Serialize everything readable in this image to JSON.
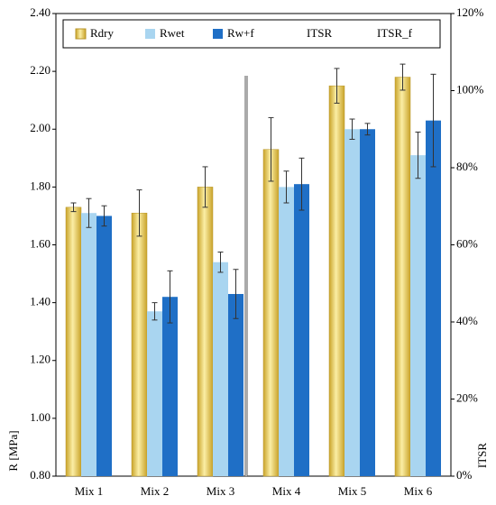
{
  "chart_data": {
    "type": "bar",
    "categories": [
      "Mix 1",
      "Mix 2",
      "Mix 3",
      "Mix 4",
      "Mix 5",
      "Mix 6"
    ],
    "series": [
      {
        "name": "Rdry",
        "color": "#efcf5a",
        "values": [
          1.73,
          1.71,
          1.8,
          1.93,
          2.15,
          2.18
        ],
        "errors": [
          0.015,
          0.08,
          0.07,
          0.11,
          0.06,
          0.045
        ]
      },
      {
        "name": "Rwet",
        "color": "#a9d5f0",
        "values": [
          1.71,
          1.37,
          1.54,
          1.8,
          2.0,
          1.91
        ],
        "errors": [
          0.05,
          0.03,
          0.035,
          0.055,
          0.035,
          0.08
        ]
      },
      {
        "name": "Rw+f",
        "color": "#1f6fc6",
        "values": [
          1.7,
          1.42,
          1.43,
          1.81,
          2.0,
          2.03
        ],
        "errors": [
          0.035,
          0.09,
          0.085,
          0.09,
          0.02,
          0.16
        ]
      },
      {
        "name": "ITSR",
        "axis": "y2",
        "values": [
          null,
          null,
          null,
          null,
          null,
          null
        ]
      },
      {
        "name": "ITSR_f",
        "axis": "y2",
        "values": [
          null,
          null,
          null,
          null,
          null,
          null
        ]
      }
    ],
    "y_label": "R [MPa]",
    "y2_label": "ITSR",
    "ylim": [
      0.8,
      2.4
    ],
    "yticks": [
      {
        "value": 0.8,
        "label": "0.80"
      },
      {
        "value": 1.0,
        "label": "1.00"
      },
      {
        "value": 1.2,
        "label": "1.20"
      },
      {
        "value": 1.4,
        "label": "1.40"
      },
      {
        "value": 1.6,
        "label": "1.60"
      },
      {
        "value": 1.8,
        "label": "1.80"
      },
      {
        "value": 2.0,
        "label": "2.00"
      },
      {
        "value": 2.2,
        "label": "2.20"
      },
      {
        "value": 2.4,
        "label": "2.40"
      }
    ],
    "y2lim": [
      0,
      120
    ],
    "y2ticks": [
      {
        "value": 0,
        "label": "0%"
      },
      {
        "value": 20,
        "label": "20%"
      },
      {
        "value": 40,
        "label": "40%"
      },
      {
        "value": 60,
        "label": "60%"
      },
      {
        "value": 80,
        "label": "80%"
      },
      {
        "value": 100,
        "label": "100%"
      },
      {
        "value": 120,
        "label": "120%"
      }
    ],
    "legend": "top"
  }
}
